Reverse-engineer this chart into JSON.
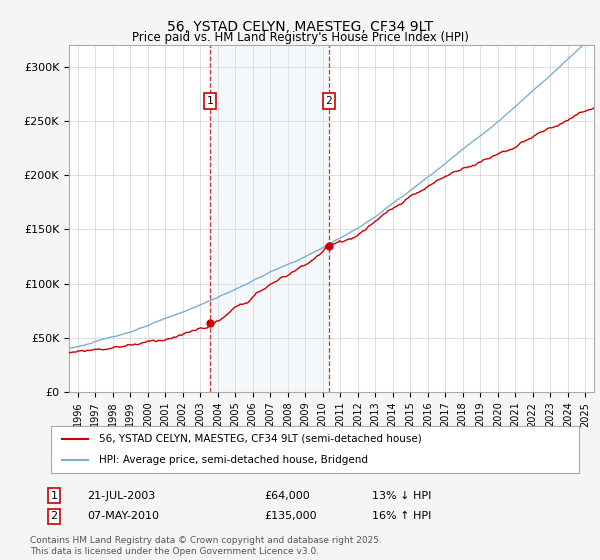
{
  "title": "56, YSTAD CELYN, MAESTEG, CF34 9LT",
  "subtitle": "Price paid vs. HM Land Registry's House Price Index (HPI)",
  "legend_line1": "56, YSTAD CELYN, MAESTEG, CF34 9LT (semi-detached house)",
  "legend_line2": "HPI: Average price, semi-detached house, Bridgend",
  "footer": "Contains HM Land Registry data © Crown copyright and database right 2025.\nThis data is licensed under the Open Government Licence v3.0.",
  "annotation1_date": "21-JUL-2003",
  "annotation1_price": "£64,000",
  "annotation1_hpi": "13% ↓ HPI",
  "annotation2_date": "07-MAY-2010",
  "annotation2_price": "£135,000",
  "annotation2_hpi": "16% ↑ HPI",
  "sale1_x": 2003.55,
  "sale1_y": 64000,
  "sale2_x": 2010.35,
  "sale2_y": 135000,
  "ylim": [
    0,
    320000
  ],
  "xlim_start": 1995.5,
  "xlim_end": 2025.5,
  "hpi_color": "#7ab0d4",
  "price_color": "#cc0000",
  "plot_bg": "#ffffff",
  "shade_color": "#dce9f5",
  "grid_color": "#cccccc",
  "annotation_box_color": "#cc0000",
  "fig_bg": "#f5f5f5"
}
